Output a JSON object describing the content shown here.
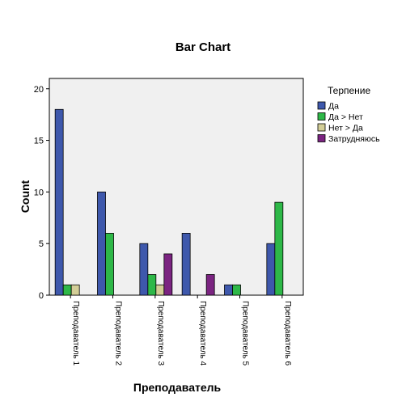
{
  "chart_data": {
    "type": "bar",
    "title": "Bar Chart",
    "xlabel": "Преподаватель",
    "ylabel": "Count",
    "ylim": [
      0,
      21
    ],
    "yticks": [
      0,
      5,
      10,
      15,
      20
    ],
    "grid": false,
    "legend_title": "Терпение",
    "legend_position": "right",
    "categories": [
      "Преподаватель 1",
      "Преподаватель 2",
      "Преподаватель 3",
      "Преподаватель 4",
      "Преподаватель 5",
      "Преподаватель 6"
    ],
    "series": [
      {
        "name": "Да",
        "color": "#3e58ac",
        "values": [
          18,
          10,
          5,
          6,
          1,
          5
        ]
      },
      {
        "name": "Да > Нет",
        "color": "#2eb848",
        "values": [
          1,
          6,
          2,
          0,
          1,
          9
        ]
      },
      {
        "name": "Нет > Да",
        "color": "#d3ce97",
        "values": [
          1,
          0,
          1,
          0,
          0,
          0
        ]
      },
      {
        "name": "Затрудняюсь",
        "color": "#7b2481",
        "values": [
          0,
          0,
          4,
          2,
          0,
          0
        ]
      }
    ]
  }
}
